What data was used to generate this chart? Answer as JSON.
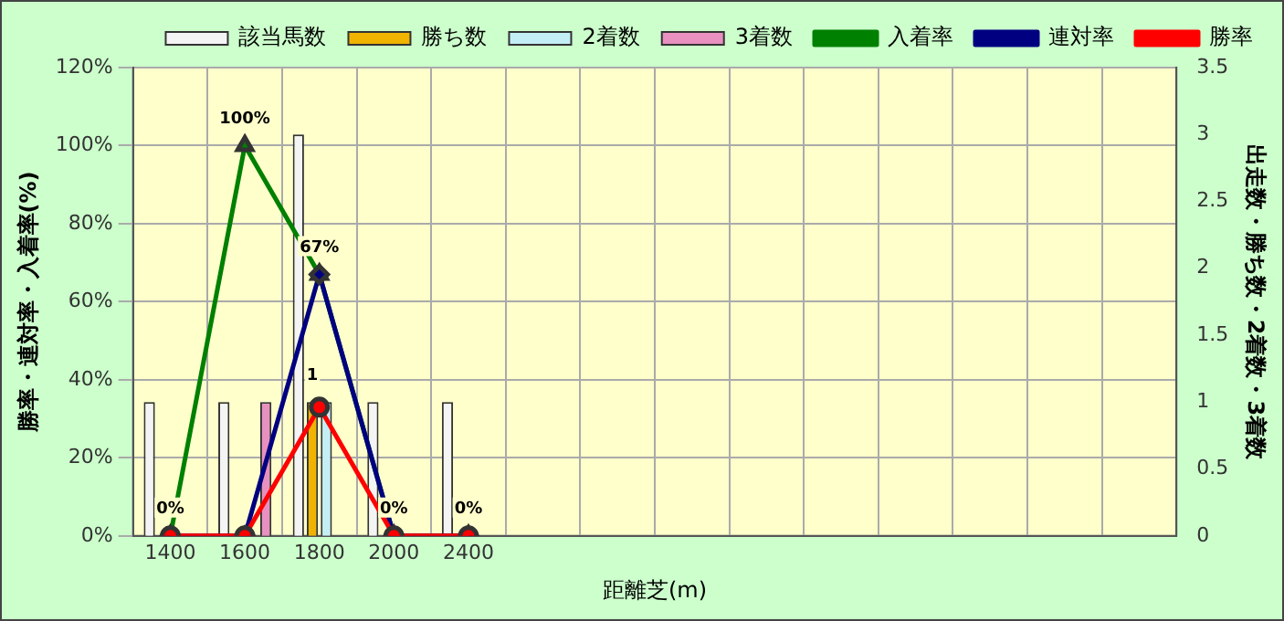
{
  "chart_data": {
    "type": "bar",
    "xlabel": "距離芝(m)",
    "ylabel": "勝率・連対率・入着率(%)",
    "y2label": "出走数・勝ち数・2着数・3着数",
    "categories": [
      "1400",
      "1600",
      "1800",
      "2000",
      "2400",
      null,
      null,
      null,
      null,
      null,
      null,
      null,
      null,
      null
    ],
    "series": [
      {
        "name": "該当馬数",
        "axis": "y2",
        "color": "#f4f4f4",
        "values": [
          1,
          1,
          3,
          1,
          1,
          null,
          null,
          null,
          null,
          null,
          null,
          null,
          null,
          null
        ]
      },
      {
        "name": "勝ち数",
        "axis": "y2",
        "color": "#f0b400",
        "values": [
          0,
          0,
          1,
          0,
          0,
          null,
          null,
          null,
          null,
          null,
          null,
          null,
          null,
          null
        ],
        "value_labels": [
          null,
          null,
          "1",
          null,
          null,
          null,
          null,
          null,
          null,
          null,
          null,
          null,
          null,
          null
        ]
      },
      {
        "name": "2着数",
        "axis": "y2",
        "color": "#c4eef6",
        "values": [
          0,
          0,
          1,
          0,
          0,
          null,
          null,
          null,
          null,
          null,
          null,
          null,
          null,
          null
        ]
      },
      {
        "name": "3着数",
        "axis": "y2",
        "color": "#e890c0",
        "values": [
          0,
          1,
          0,
          0,
          0,
          null,
          null,
          null,
          null,
          null,
          null,
          null,
          null,
          null
        ]
      },
      {
        "name": "入着率",
        "type": "line",
        "color": "#008000",
        "marker": "triangle",
        "values": [
          0,
          100,
          67,
          0,
          0,
          null,
          null,
          null,
          null,
          null,
          null,
          null,
          null,
          null
        ],
        "value_labels": [
          "0%",
          "100%",
          "67%",
          "0%",
          "0%",
          null,
          null,
          null,
          null,
          null,
          null,
          null,
          null,
          null
        ]
      },
      {
        "name": "連対率",
        "type": "line",
        "color": "#000080",
        "marker": "diamond",
        "values": [
          0,
          0,
          67,
          0,
          0,
          null,
          null,
          null,
          null,
          null,
          null,
          null,
          null,
          null
        ]
      },
      {
        "name": "勝率",
        "type": "line",
        "color": "#ff0000",
        "marker": "circle",
        "values": [
          0,
          0,
          33,
          0,
          0,
          null,
          null,
          null,
          null,
          null,
          null,
          null,
          null,
          null
        ]
      }
    ],
    "ylim": [
      0,
      120
    ],
    "yticks": [
      {
        "value": 0,
        "label": "0%"
      },
      {
        "value": 20,
        "label": "20%"
      },
      {
        "value": 40,
        "label": "40%"
      },
      {
        "value": 60,
        "label": "60%"
      },
      {
        "value": 80,
        "label": "80%"
      },
      {
        "value": 100,
        "label": "100%"
      },
      {
        "value": 120,
        "label": "120%"
      }
    ],
    "y2lim": [
      0,
      3.5
    ],
    "y2ticks": [
      0,
      0.5,
      1,
      1.5,
      2,
      2.5,
      3,
      3.5
    ],
    "grid": true,
    "legend": "top"
  }
}
